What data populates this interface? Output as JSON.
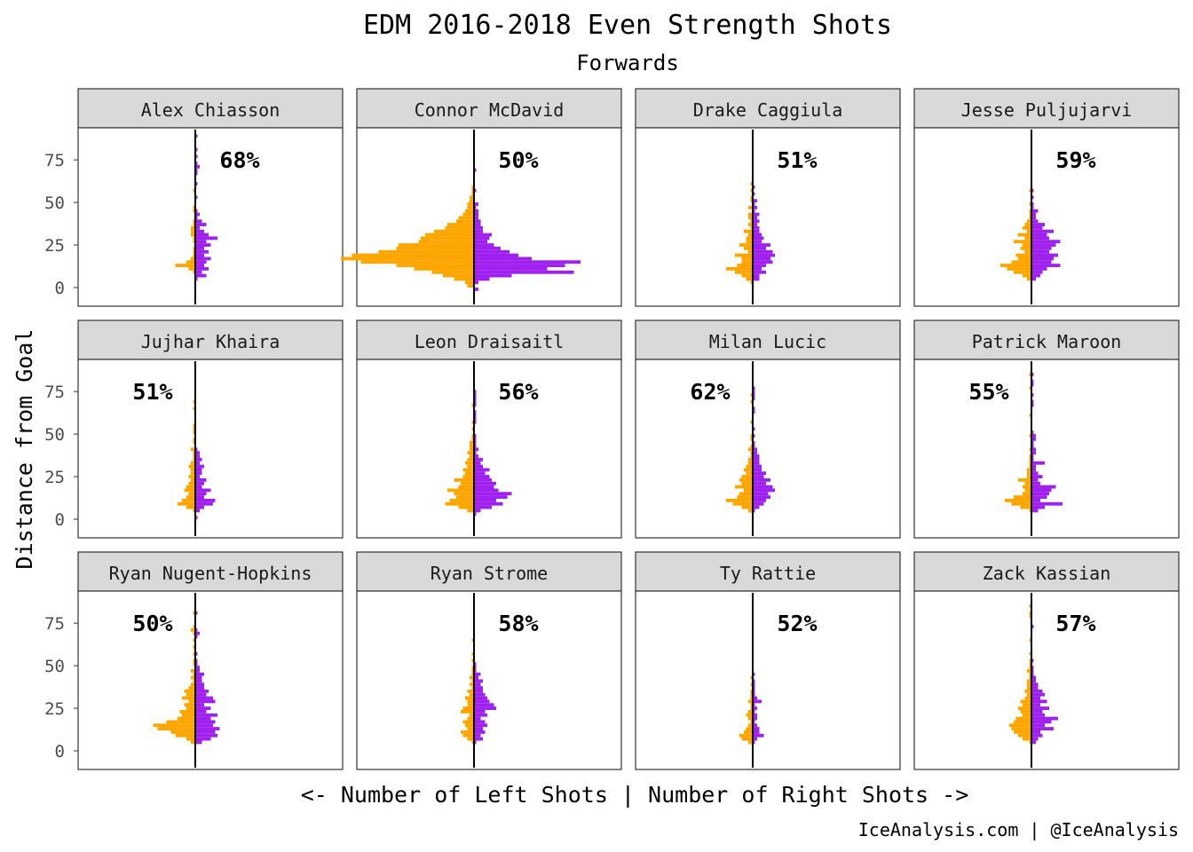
{
  "chart_data": {
    "type": "bar",
    "orientation": "horizontal-back-to-back",
    "title": "EDM 2016-2018 Even Strength Shots",
    "subtitle": "Forwards",
    "xlabel": "<- Number of Left Shots | Number of Right Shots ->",
    "ylabel": "Distance from Goal",
    "caption": "IceAnalysis.com | @IceAnalysis",
    "y_ticks": [
      "0",
      "25",
      "50",
      "75"
    ],
    "ylim": [
      -8,
      92
    ],
    "bin_size": 2,
    "bin_start": -4,
    "colors": {
      "left": "#FFA500",
      "right": "#A020F0",
      "strip_bg": "#D9D9D9"
    },
    "series": [
      {
        "name": "Alex Chiasson",
        "percent": "68%",
        "pct_side": "right",
        "left": [
          0,
          0,
          0,
          0,
          0,
          0,
          1,
          3,
          9,
          4,
          2,
          1,
          1,
          1,
          0,
          1,
          1,
          2,
          2,
          2,
          1,
          1,
          0,
          0,
          1,
          1,
          0,
          0,
          0,
          0,
          1,
          0,
          0,
          0,
          0,
          0,
          0,
          0,
          0,
          0,
          0,
          0,
          0,
          0,
          0,
          0,
          0,
          0,
          0,
          0
        ],
        "right": [
          0,
          0,
          0,
          0,
          1,
          5,
          3,
          6,
          4,
          5,
          7,
          4,
          6,
          4,
          7,
          5,
          10,
          6,
          4,
          2,
          5,
          3,
          1,
          2,
          1,
          0,
          0,
          0,
          1,
          0,
          0,
          0,
          1,
          0,
          0,
          1,
          1,
          2,
          1,
          0,
          1,
          0,
          1,
          0,
          0,
          0,
          1,
          0,
          0,
          0
        ]
      },
      {
        "name": "Connor McDavid",
        "percent": "50%",
        "pct_side": "right",
        "left": [
          0,
          0,
          3,
          4,
          9,
          14,
          19,
          27,
          35,
          51,
          60,
          55,
          43,
          35,
          34,
          25,
          24,
          22,
          18,
          13,
          12,
          8,
          7,
          5,
          4,
          3,
          3,
          2,
          2,
          1,
          1,
          1,
          0,
          0,
          0,
          0,
          0,
          0,
          0,
          0,
          0,
          0,
          0,
          0,
          0,
          0,
          0,
          0,
          0,
          0
        ],
        "right": [
          0,
          2,
          0,
          2,
          7,
          17,
          45,
          33,
          41,
          48,
          26,
          20,
          16,
          12,
          9,
          6,
          7,
          8,
          4,
          4,
          3,
          3,
          2,
          2,
          2,
          1,
          2,
          0,
          0,
          0,
          1,
          0,
          0,
          0,
          0,
          0,
          1,
          0,
          0,
          0,
          0,
          0,
          0,
          0,
          0,
          0,
          0,
          0,
          0,
          0
        ]
      },
      {
        "name": "Drake Caggiula",
        "percent": "51%",
        "pct_side": "right",
        "left": [
          0,
          0,
          0,
          1,
          3,
          5,
          8,
          12,
          7,
          5,
          5,
          8,
          2,
          4,
          6,
          3,
          3,
          2,
          4,
          1,
          2,
          1,
          2,
          2,
          0,
          2,
          0,
          1,
          1,
          0,
          1,
          0,
          1,
          0,
          0,
          0,
          0,
          0,
          0,
          0,
          0,
          0,
          0,
          0,
          0,
          0,
          0,
          0,
          0,
          0
        ],
        "right": [
          0,
          0,
          0,
          0,
          3,
          3,
          6,
          4,
          6,
          9,
          8,
          10,
          9,
          6,
          8,
          4,
          5,
          4,
          3,
          3,
          2,
          3,
          2,
          3,
          1,
          2,
          1,
          2,
          0,
          1,
          0,
          1,
          0,
          0,
          0,
          0,
          0,
          0,
          0,
          0,
          0,
          0,
          0,
          0,
          0,
          0,
          0,
          0,
          0,
          0
        ]
      },
      {
        "name": "Jesse Puljujarvi",
        "percent": "59%",
        "pct_side": "right",
        "left": [
          0,
          0,
          0,
          0,
          2,
          4,
          8,
          11,
          14,
          9,
          6,
          7,
          3,
          5,
          4,
          8,
          3,
          6,
          2,
          4,
          3,
          2,
          1,
          1,
          1,
          0,
          1,
          0,
          0,
          0,
          1,
          0,
          0,
          0,
          0,
          0,
          0,
          0,
          0,
          0,
          0,
          0,
          0,
          0,
          0,
          0,
          0,
          0,
          0,
          0
        ],
        "right": [
          0,
          0,
          0,
          0,
          2,
          4,
          5,
          7,
          13,
          9,
          10,
          12,
          8,
          9,
          11,
          13,
          8,
          7,
          10,
          5,
          6,
          3,
          2,
          2,
          3,
          1,
          1,
          0,
          1,
          0,
          1,
          0,
          0,
          0,
          0,
          0,
          0,
          0,
          0,
          0,
          0,
          0,
          0,
          0,
          0,
          0,
          0,
          0,
          0,
          0
        ]
      },
      {
        "name": "Jujhar Khaira",
        "percent": "51%",
        "pct_side": "left",
        "left": [
          0,
          0,
          0,
          0,
          1,
          4,
          8,
          6,
          4,
          3,
          5,
          4,
          3,
          2,
          3,
          2,
          2,
          3,
          2,
          1,
          1,
          1,
          2,
          0,
          1,
          1,
          0,
          1,
          1,
          1,
          0,
          0,
          0,
          0,
          1,
          0,
          1,
          0,
          0,
          0,
          0,
          0,
          0,
          0,
          0,
          0,
          0,
          0,
          0,
          0
        ],
        "right": [
          0,
          0,
          1,
          0,
          2,
          4,
          8,
          9,
          4,
          5,
          7,
          3,
          4,
          5,
          2,
          3,
          3,
          4,
          2,
          3,
          2,
          2,
          1,
          0,
          0,
          0,
          0,
          0,
          0,
          0,
          0,
          0,
          0,
          0,
          0,
          0,
          0,
          0,
          0,
          0,
          0,
          0,
          0,
          0,
          0,
          0,
          0,
          0,
          0,
          0
        ]
      },
      {
        "name": "Leon Draisaitl",
        "percent": "56%",
        "pct_side": "right",
        "left": [
          0,
          0,
          0,
          0,
          3,
          7,
          13,
          11,
          8,
          9,
          12,
          7,
          6,
          9,
          5,
          4,
          5,
          3,
          4,
          3,
          2,
          3,
          2,
          2,
          2,
          1,
          1,
          0,
          1,
          0,
          1,
          0,
          0,
          0,
          0,
          1,
          0,
          0,
          0,
          0,
          0,
          0,
          0,
          0,
          0,
          0,
          0,
          0,
          0,
          0
        ],
        "right": [
          0,
          0,
          0,
          1,
          3,
          8,
          13,
          10,
          15,
          17,
          11,
          9,
          10,
          8,
          7,
          5,
          7,
          4,
          3,
          4,
          2,
          1,
          2,
          1,
          1,
          1,
          1,
          0,
          0,
          0,
          1,
          1,
          1,
          1,
          0,
          1,
          1,
          1,
          1,
          1,
          0,
          0,
          0,
          0,
          0,
          0,
          0,
          0,
          0,
          0
        ]
      },
      {
        "name": "Milan Lucic",
        "percent": "62%",
        "pct_side": "left",
        "left": [
          0,
          0,
          0,
          0,
          2,
          5,
          9,
          12,
          7,
          6,
          4,
          8,
          5,
          6,
          5,
          3,
          4,
          3,
          2,
          2,
          1,
          1,
          2,
          1,
          0,
          1,
          1,
          0,
          0,
          0,
          1,
          0,
          0,
          0,
          0,
          0,
          1,
          0,
          1,
          0,
          0,
          0,
          0,
          0,
          0,
          0,
          0,
          0,
          0,
          0
        ],
        "right": [
          0,
          0,
          0,
          0,
          1,
          3,
          5,
          6,
          8,
          7,
          10,
          9,
          6,
          8,
          5,
          6,
          4,
          4,
          3,
          3,
          3,
          2,
          2,
          1,
          1,
          0,
          1,
          0,
          1,
          0,
          0,
          0,
          0,
          1,
          1,
          0,
          0,
          1,
          1,
          1,
          1,
          0,
          0,
          0,
          0,
          0,
          0,
          0,
          0,
          0
        ]
      },
      {
        "name": "Patrick Maroon",
        "percent": "55%",
        "pct_side": "left",
        "left": [
          0,
          0,
          0,
          0,
          1,
          5,
          9,
          12,
          8,
          4,
          3,
          4,
          3,
          6,
          2,
          2,
          2,
          1,
          1,
          1,
          1,
          0,
          1,
          0,
          0,
          0,
          1,
          0,
          0,
          0,
          0,
          0,
          1,
          0,
          0,
          0,
          0,
          0,
          0,
          0,
          1,
          0,
          0,
          0,
          1,
          0,
          0,
          0,
          0,
          0
        ],
        "right": [
          0,
          0,
          0,
          0,
          3,
          6,
          14,
          4,
          7,
          8,
          9,
          11,
          4,
          3,
          5,
          3,
          2,
          2,
          6,
          1,
          1,
          2,
          2,
          1,
          1,
          2,
          2,
          1,
          0,
          0,
          0,
          0,
          0,
          0,
          0,
          1,
          1,
          0,
          1,
          0,
          0,
          1,
          1,
          0,
          1,
          0,
          0,
          0,
          0,
          0
        ]
      },
      {
        "name": "Ryan Nugent-Hopkins",
        "percent": "50%",
        "pct_side": "left",
        "left": [
          0,
          0,
          0,
          0,
          2,
          4,
          9,
          11,
          17,
          19,
          13,
          8,
          6,
          7,
          4,
          5,
          3,
          6,
          4,
          5,
          3,
          2,
          1,
          2,
          1,
          2,
          0,
          1,
          1,
          0,
          1,
          0,
          1,
          0,
          1,
          0,
          1,
          2,
          1,
          0,
          0,
          0,
          1,
          0,
          0,
          0,
          0,
          0,
          0,
          0
        ],
        "right": [
          0,
          0,
          0,
          0,
          3,
          7,
          10,
          9,
          11,
          8,
          9,
          7,
          10,
          5,
          7,
          4,
          9,
          8,
          5,
          6,
          4,
          4,
          3,
          3,
          4,
          2,
          2,
          1,
          1,
          0,
          1,
          0,
          0,
          0,
          0,
          1,
          2,
          1,
          0,
          0,
          0,
          0,
          1,
          0,
          0,
          0,
          0,
          0,
          0,
          0
        ]
      },
      {
        "name": "Ryan Strome",
        "percent": "58%",
        "pct_side": "right",
        "left": [
          0,
          0,
          0,
          0,
          1,
          3,
          5,
          6,
          3,
          4,
          5,
          3,
          2,
          6,
          5,
          3,
          3,
          4,
          2,
          3,
          1,
          2,
          1,
          2,
          1,
          1,
          1,
          0,
          1,
          0,
          1,
          0,
          0,
          0,
          1,
          0,
          0,
          0,
          0,
          0,
          0,
          0,
          0,
          0,
          0,
          0,
          0,
          0,
          0,
          0
        ],
        "right": [
          0,
          0,
          0,
          0,
          1,
          4,
          3,
          5,
          4,
          6,
          5,
          3,
          6,
          5,
          10,
          9,
          7,
          6,
          5,
          4,
          4,
          3,
          4,
          2,
          3,
          1,
          1,
          1,
          0,
          0,
          0,
          0,
          0,
          0,
          0,
          0,
          0,
          0,
          0,
          0,
          0,
          0,
          0,
          0,
          0,
          0,
          0,
          0,
          0,
          0
        ]
      },
      {
        "name": "Ty Rattie",
        "percent": "52%",
        "pct_side": "right",
        "left": [
          0,
          0,
          0,
          0,
          2,
          5,
          6,
          4,
          3,
          2,
          1,
          2,
          3,
          2,
          1,
          1,
          2,
          1,
          1,
          1,
          0,
          1,
          0,
          1,
          0,
          0,
          0,
          0,
          0,
          0,
          0,
          0,
          0,
          0,
          0,
          0,
          0,
          0,
          0,
          0,
          0,
          0,
          0,
          0,
          0,
          0,
          0,
          0,
          0,
          0
        ],
        "right": [
          0,
          0,
          0,
          0,
          1,
          2,
          5,
          3,
          3,
          2,
          1,
          2,
          2,
          1,
          2,
          1,
          4,
          2,
          1,
          1,
          1,
          1,
          1,
          0,
          1,
          0,
          0,
          0,
          0,
          0,
          0,
          0,
          0,
          0,
          0,
          0,
          0,
          0,
          0,
          0,
          0,
          0,
          0,
          0,
          0,
          0,
          0,
          0,
          0,
          0
        ]
      },
      {
        "name": "Zack Kassian",
        "percent": "57%",
        "pct_side": "right",
        "left": [
          0,
          0,
          0,
          0,
          1,
          4,
          6,
          8,
          9,
          10,
          8,
          7,
          4,
          5,
          6,
          4,
          5,
          3,
          2,
          3,
          2,
          2,
          2,
          1,
          1,
          2,
          1,
          1,
          1,
          0,
          1,
          0,
          0,
          0,
          1,
          0,
          0,
          0,
          0,
          0,
          0,
          1,
          1,
          0,
          1,
          0,
          0,
          0,
          0,
          0
        ],
        "right": [
          0,
          0,
          0,
          0,
          2,
          3,
          5,
          4,
          10,
          6,
          9,
          12,
          6,
          5,
          8,
          4,
          7,
          4,
          6,
          5,
          3,
          3,
          2,
          2,
          1,
          1,
          1,
          0,
          1,
          0,
          0,
          0,
          0,
          0,
          0,
          0,
          0,
          0,
          1,
          0,
          0,
          0,
          0,
          0,
          0,
          0,
          0,
          0,
          0,
          0
        ]
      }
    ]
  }
}
